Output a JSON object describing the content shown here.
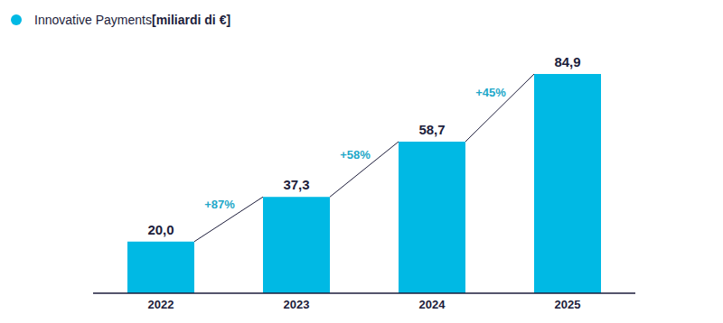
{
  "chart_data": {
    "type": "bar",
    "categories": [
      "2022",
      "2023",
      "2024",
      "2025"
    ],
    "series": [
      {
        "name": "Innovative Payments [miliardi di €]",
        "color": "#00b9e4",
        "values": [
          20.0,
          37.3,
          58.7,
          84.9
        ]
      }
    ],
    "data_labels": true,
    "value_labels": [
      "20,0",
      "37,3",
      "58,7",
      "84,9"
    ],
    "annotations": [
      {
        "text": "+87%",
        "between": [
          "2022",
          "2023"
        ]
      },
      {
        "text": "+58%",
        "between": [
          "2023",
          "2024"
        ]
      },
      {
        "text": "+45%",
        "between": [
          "2024",
          "2025"
        ]
      }
    ],
    "legend": "top-left",
    "tick_labels": "x",
    "grid": false
  }
}
